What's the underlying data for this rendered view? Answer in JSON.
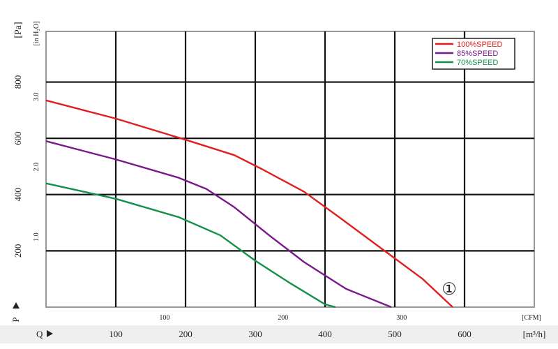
{
  "chart_data": {
    "type": "line",
    "pressure_unit_primary": "[Pa]",
    "pressure_unit_secondary": "[in H₂O]",
    "pressure_axis_letter": "P",
    "flow_axis_letter": "Q",
    "flow_unit_primary": "[m³/h]",
    "flow_unit_secondary": "[CFM]",
    "pa_ticks": [
      "200",
      "400",
      "600",
      "800"
    ],
    "in_ticks": [
      "1.0",
      "2.0",
      "3.0"
    ],
    "m3h_ticks": [
      "100",
      "200",
      "300",
      "400",
      "500",
      "600"
    ],
    "cfm_ticks": [
      "100",
      "200",
      "300"
    ],
    "xlim_m3h": [
      0,
      700
    ],
    "ylim_pa": [
      0,
      980
    ],
    "grid": true,
    "legend_position": "top-right",
    "annotation": "①",
    "annotation_point": [
      578,
      30
    ],
    "series": [
      {
        "name": "100%SPEED",
        "color": "#e02020",
        "x": [
          0,
          100,
          200,
          270,
          310,
          370,
          420,
          480,
          540,
          583
        ],
        "y": [
          735,
          670,
          595,
          540,
          490,
          410,
          320,
          210,
          100,
          0
        ]
      },
      {
        "name": "85%SPEED",
        "color": "#7a1a8a",
        "x": [
          0,
          100,
          190,
          230,
          270,
          320,
          370,
          430,
          495
        ],
        "y": [
          590,
          525,
          460,
          420,
          355,
          255,
          160,
          65,
          0
        ]
      },
      {
        "name": "70%SPEED",
        "color": "#13904a",
        "x": [
          0,
          100,
          190,
          250,
          300,
          350,
          400,
          415
        ],
        "y": [
          440,
          385,
          320,
          255,
          165,
          85,
          10,
          0
        ]
      }
    ]
  }
}
